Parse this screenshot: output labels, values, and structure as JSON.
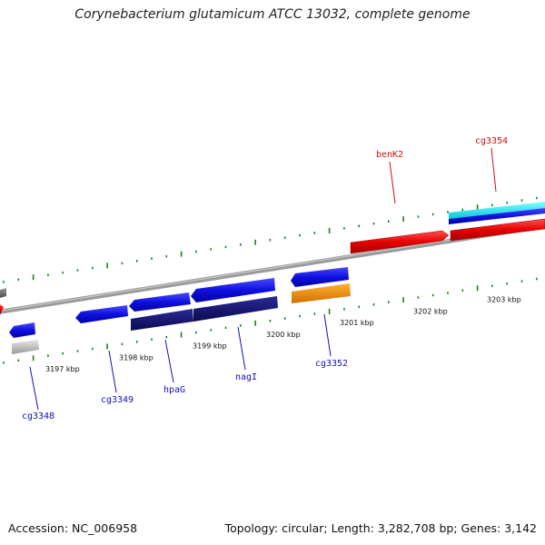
{
  "title": "Corynebacterium glutamicum ATCC 13032, complete genome",
  "footer": {
    "accession": "Accession: NC_006958",
    "topology": "Topology: circular; Length: 3,282,708 bp; Genes: 3,142"
  },
  "colors": {
    "backbone": "#8a8a8a",
    "tick": "#1e7d1e",
    "forward_label": "#cc1111",
    "reverse_label": "#1111bb"
  },
  "ticks": [
    "3197 kbp",
    "3198 kbp",
    "3199 kbp",
    "3200 kbp",
    "3201 kbp",
    "3202 kbp",
    "3203 kbp"
  ],
  "gene_labels": {
    "forward": [
      "benK2",
      "cg3354"
    ],
    "reverse": [
      "cg3348",
      "cg3349",
      "hpaG",
      "nagI",
      "cg3352"
    ]
  }
}
